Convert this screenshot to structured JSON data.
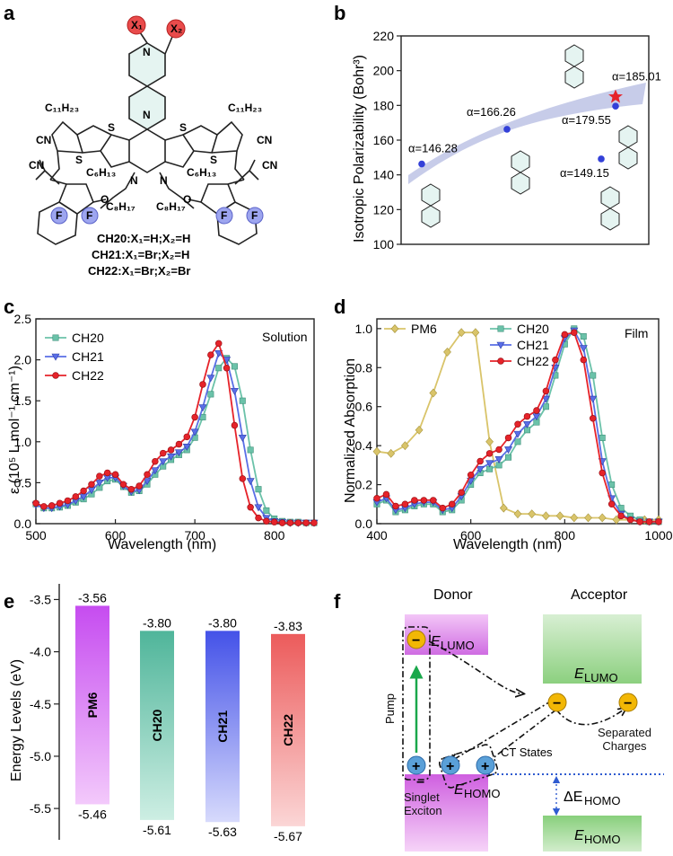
{
  "panels": {
    "a": {
      "letter": "a",
      "labels": {
        "x1": "X₁",
        "x2": "X₂",
        "c11_left": "C₁₁H₂₃",
        "c11_right": "C₁₁H₂₃",
        "s": "S",
        "n": "N",
        "c6_left": "C₆H₁₃",
        "c6_right": "C₆H₁₃",
        "c8_left": "C₈H₁₇",
        "c8_right": "C₈H₁₇",
        "cn": "CN",
        "o": "O",
        "f": "F"
      },
      "legend": [
        "CH20:X₁=H;X₂=H",
        "CH21:X₁=Br;X₂=H",
        "CH22:X₁=Br;X₂=Br"
      ]
    },
    "b": {
      "letter": "b"
    },
    "c": {
      "letter": "c"
    },
    "d": {
      "letter": "d"
    },
    "e": {
      "letter": "e"
    },
    "f": {
      "letter": "f"
    }
  },
  "diagram_f": {
    "donor": "Donor",
    "acceptor": "Acceptor",
    "e_lumo_donor": "E",
    "e_lumo_acceptor": "E",
    "lumo_sub": "LUMO",
    "homo_sub": "HOMO",
    "pump": "Pump",
    "ct_states": "CT States",
    "separated_charges": "Separated Charges",
    "singlet_exciton": "Singlet Exciton",
    "delta_e_homo": "ΔE",
    "plus": "+",
    "minus": "−"
  },
  "colors": {
    "ch20": "#6bc2a9",
    "ch21": "#5a6ee6",
    "ch22": "#e6232a",
    "pm6": "#d9c46a",
    "band": "#b9bfe3"
  },
  "chart_data": [
    {
      "id": "b",
      "type": "scatter",
      "title": "",
      "xlabel": "",
      "ylabel": "Isotropic Polarizability (Bohr³)",
      "ylim": [
        100,
        220
      ],
      "yticks": [
        100,
        120,
        140,
        160,
        180,
        200,
        220
      ],
      "points": [
        {
          "label": "α=146.28",
          "value": 146.28
        },
        {
          "label": "α=166.26",
          "value": 166.26
        },
        {
          "label": "α=185.01",
          "value": 185.01
        },
        {
          "label": "α=179.55",
          "value": 179.55
        },
        {
          "label": "α=149.15",
          "value": 149.15
        }
      ]
    },
    {
      "id": "c",
      "type": "line",
      "xlabel": "Wavelength (nm)",
      "ylabel": "ε (10⁵ L mol⁻¹ cm⁻¹)",
      "xlim": [
        500,
        850
      ],
      "ylim": [
        0.0,
        2.5
      ],
      "xticks": [
        500,
        600,
        700,
        800
      ],
      "yticks": [
        0.0,
        0.5,
        1.0,
        1.5,
        2.0,
        2.5
      ],
      "annotation": "Solution",
      "series": [
        {
          "name": "CH20",
          "x": [
            500,
            510,
            520,
            530,
            540,
            550,
            560,
            570,
            580,
            590,
            600,
            610,
            620,
            630,
            640,
            650,
            660,
            670,
            680,
            690,
            700,
            710,
            720,
            730,
            740,
            750,
            760,
            770,
            780,
            790,
            800,
            810,
            820,
            830,
            840,
            850
          ],
          "values": [
            0.24,
            0.19,
            0.19,
            0.2,
            0.22,
            0.26,
            0.3,
            0.36,
            0.44,
            0.52,
            0.54,
            0.45,
            0.38,
            0.4,
            0.48,
            0.6,
            0.7,
            0.78,
            0.84,
            0.9,
            1.05,
            1.3,
            1.58,
            1.9,
            2.02,
            1.92,
            1.5,
            0.9,
            0.42,
            0.16,
            0.06,
            0.03,
            0.02,
            0.02,
            0.01,
            0.01
          ]
        },
        {
          "name": "CH21",
          "x": [
            500,
            510,
            520,
            530,
            540,
            550,
            560,
            570,
            580,
            590,
            600,
            610,
            620,
            630,
            640,
            650,
            660,
            670,
            680,
            690,
            700,
            710,
            720,
            730,
            740,
            750,
            760,
            770,
            780,
            790,
            800,
            810,
            820,
            830,
            840,
            850
          ],
          "values": [
            0.23,
            0.19,
            0.19,
            0.21,
            0.23,
            0.28,
            0.33,
            0.41,
            0.5,
            0.56,
            0.56,
            0.46,
            0.39,
            0.41,
            0.52,
            0.65,
            0.76,
            0.82,
            0.87,
            0.94,
            1.12,
            1.42,
            1.78,
            2.08,
            2.0,
            1.62,
            1.05,
            0.52,
            0.2,
            0.07,
            0.03,
            0.02,
            0.01,
            0.01,
            0.01,
            0.01
          ]
        },
        {
          "name": "CH22",
          "x": [
            500,
            510,
            520,
            530,
            540,
            550,
            560,
            570,
            580,
            590,
            600,
            610,
            620,
            630,
            640,
            650,
            660,
            670,
            680,
            690,
            700,
            710,
            720,
            730,
            740,
            750,
            760,
            770,
            780,
            790,
            800,
            810,
            820,
            830,
            840,
            850
          ],
          "values": [
            0.25,
            0.21,
            0.22,
            0.25,
            0.28,
            0.33,
            0.4,
            0.48,
            0.58,
            0.62,
            0.6,
            0.48,
            0.42,
            0.46,
            0.6,
            0.76,
            0.86,
            0.9,
            0.97,
            1.06,
            1.3,
            1.7,
            2.06,
            2.2,
            1.9,
            1.2,
            0.55,
            0.2,
            0.07,
            0.03,
            0.02,
            0.01,
            0.01,
            0.01,
            0.01,
            0.01
          ]
        }
      ]
    },
    {
      "id": "d",
      "type": "line",
      "xlabel": "Wavelength (nm)",
      "ylabel": "Normalized Absorption",
      "xlim": [
        400,
        1000
      ],
      "ylim": [
        0.0,
        1.05
      ],
      "xticks": [
        400,
        600,
        800,
        1000
      ],
      "yticks": [
        0.0,
        0.2,
        0.4,
        0.6,
        0.8,
        1.0
      ],
      "annotation": "Film",
      "series": [
        {
          "name": "PM6",
          "x": [
            400,
            430,
            460,
            490,
            520,
            550,
            580,
            610,
            640,
            670,
            700,
            730,
            760,
            790,
            820,
            850,
            880,
            910,
            940,
            970,
            1000
          ],
          "values": [
            0.37,
            0.36,
            0.4,
            0.48,
            0.67,
            0.88,
            0.98,
            0.98,
            0.42,
            0.08,
            0.05,
            0.05,
            0.04,
            0.04,
            0.03,
            0.03,
            0.03,
            0.02,
            0.02,
            0.02,
            0.02
          ]
        },
        {
          "name": "CH20",
          "x": [
            400,
            420,
            440,
            460,
            480,
            500,
            520,
            540,
            560,
            580,
            600,
            620,
            640,
            660,
            680,
            700,
            720,
            740,
            760,
            780,
            800,
            820,
            840,
            860,
            880,
            900,
            920,
            940,
            960,
            980,
            1000
          ],
          "values": [
            0.1,
            0.12,
            0.06,
            0.07,
            0.09,
            0.1,
            0.1,
            0.06,
            0.07,
            0.12,
            0.2,
            0.26,
            0.28,
            0.3,
            0.34,
            0.42,
            0.48,
            0.52,
            0.6,
            0.76,
            0.92,
            1.0,
            0.96,
            0.76,
            0.44,
            0.2,
            0.08,
            0.04,
            0.02,
            0.01,
            0.01
          ]
        },
        {
          "name": "CH21",
          "x": [
            400,
            420,
            440,
            460,
            480,
            500,
            520,
            540,
            560,
            580,
            600,
            620,
            640,
            660,
            680,
            700,
            720,
            740,
            760,
            780,
            800,
            820,
            840,
            860,
            880,
            900,
            920,
            940,
            960,
            980,
            1000
          ],
          "values": [
            0.11,
            0.13,
            0.07,
            0.08,
            0.1,
            0.11,
            0.11,
            0.07,
            0.08,
            0.14,
            0.22,
            0.28,
            0.31,
            0.33,
            0.38,
            0.46,
            0.51,
            0.55,
            0.64,
            0.8,
            0.95,
            0.99,
            0.9,
            0.64,
            0.32,
            0.13,
            0.05,
            0.02,
            0.01,
            0.01,
            0.01
          ]
        },
        {
          "name": "CH22",
          "x": [
            400,
            420,
            440,
            460,
            480,
            500,
            520,
            540,
            560,
            580,
            600,
            620,
            640,
            660,
            680,
            700,
            720,
            740,
            760,
            780,
            800,
            820,
            840,
            860,
            880,
            900,
            920,
            940,
            960,
            980,
            1000
          ],
          "values": [
            0.13,
            0.15,
            0.09,
            0.1,
            0.12,
            0.12,
            0.12,
            0.08,
            0.1,
            0.16,
            0.25,
            0.32,
            0.36,
            0.38,
            0.44,
            0.51,
            0.55,
            0.58,
            0.68,
            0.84,
            0.97,
            0.98,
            0.84,
            0.54,
            0.26,
            0.1,
            0.04,
            0.02,
            0.01,
            0.01,
            0.01
          ]
        }
      ]
    },
    {
      "id": "e",
      "type": "bar",
      "ylabel": "Energy Levels (eV)",
      "ylim": [
        -5.8,
        -3.35
      ],
      "yticks": [
        -5.5,
        -5.0,
        -4.5,
        -4.0,
        -3.5
      ],
      "bars": [
        {
          "name": "PM6",
          "lumo": -3.56,
          "homo": -5.46,
          "lumo_label": "-3.56",
          "homo_label": "-5.46"
        },
        {
          "name": "CH20",
          "lumo": -3.8,
          "homo": -5.61,
          "lumo_label": "-3.80",
          "homo_label": "-5.61"
        },
        {
          "name": "CH21",
          "lumo": -3.8,
          "homo": -5.63,
          "lumo_label": "-3.80",
          "homo_label": "-5.63"
        },
        {
          "name": "CH22",
          "lumo": -3.83,
          "homo": -5.67,
          "lumo_label": "-3.83",
          "homo_label": "-5.67"
        }
      ]
    }
  ]
}
